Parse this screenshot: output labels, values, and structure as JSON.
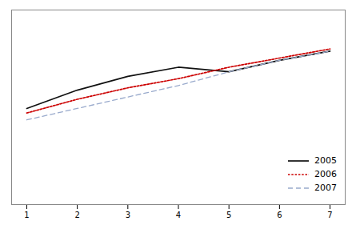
{
  "chart_data": {
    "type": "line",
    "x": [
      1,
      2,
      3,
      4,
      5,
      6,
      7
    ],
    "series": [
      {
        "name": "2005",
        "color": "#111111",
        "line_style": "solid",
        "values": [
          0.62,
          0.7,
          0.76,
          0.8,
          0.78,
          0.83,
          0.87
        ]
      },
      {
        "name": "2006",
        "color": "#cc0000",
        "line_style": "dotted",
        "values": [
          0.6,
          0.66,
          0.71,
          0.75,
          0.8,
          0.84,
          0.88
        ]
      },
      {
        "name": "2007",
        "color": "#99aacc",
        "line_style": "dashed",
        "values": [
          0.57,
          0.62,
          0.67,
          0.72,
          0.78,
          0.83,
          0.87
        ]
      }
    ],
    "xlim": [
      0.7,
      7.3
    ],
    "ylim": [
      0.2,
      1.05
    ],
    "xticks": [
      1,
      2,
      3,
      4,
      5,
      6,
      7
    ],
    "tick_labels": "x",
    "legend": "lower right"
  }
}
